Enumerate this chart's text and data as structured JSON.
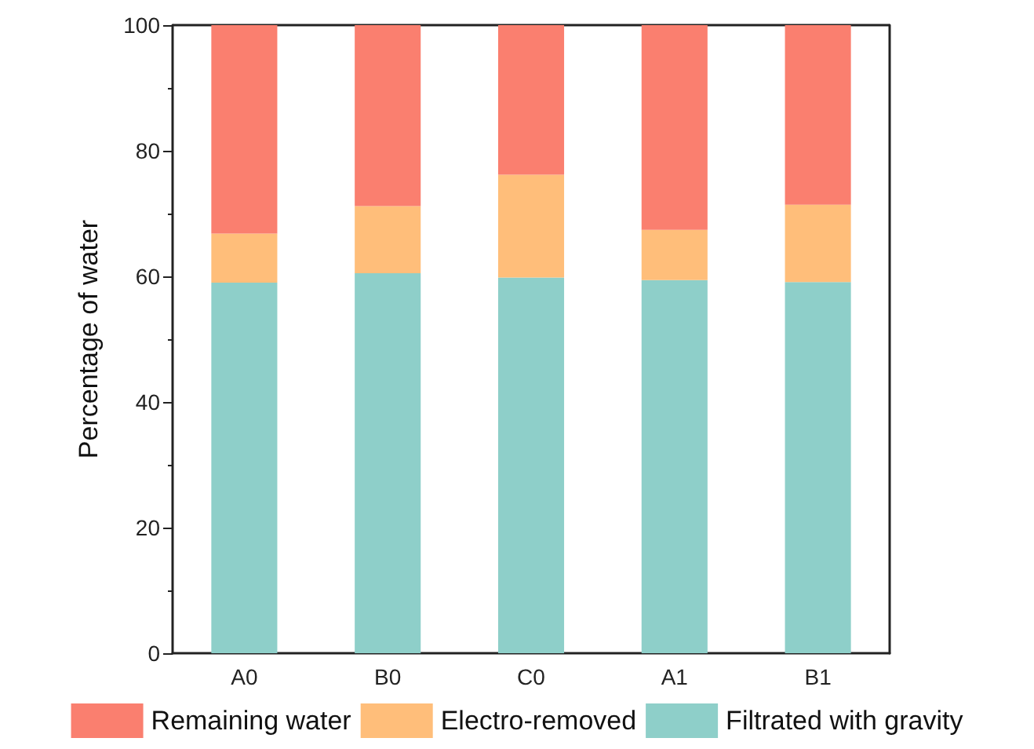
{
  "chart_data": {
    "type": "bar",
    "stacked": true,
    "ylabel": "Percentage of water",
    "categories": [
      "A0",
      "B0",
      "C0",
      "A1",
      "B1"
    ],
    "series": [
      {
        "name": "Filtrated with gravity",
        "color": "#8ecfc9",
        "values": [
          59.0,
          60.5,
          59.8,
          59.4,
          59.1
        ]
      },
      {
        "name": "Electro-removed",
        "color": "#ffbe7a",
        "values": [
          7.8,
          10.7,
          16.4,
          8.0,
          12.3
        ]
      },
      {
        "name": "Remaining water",
        "color": "#fa7f6f",
        "values": [
          33.2,
          28.8,
          23.8,
          32.6,
          28.6
        ]
      }
    ],
    "ylim": [
      0,
      100
    ],
    "yticks": [
      0,
      20,
      40,
      60,
      80,
      100
    ],
    "grid": false,
    "legend": "bottom"
  }
}
